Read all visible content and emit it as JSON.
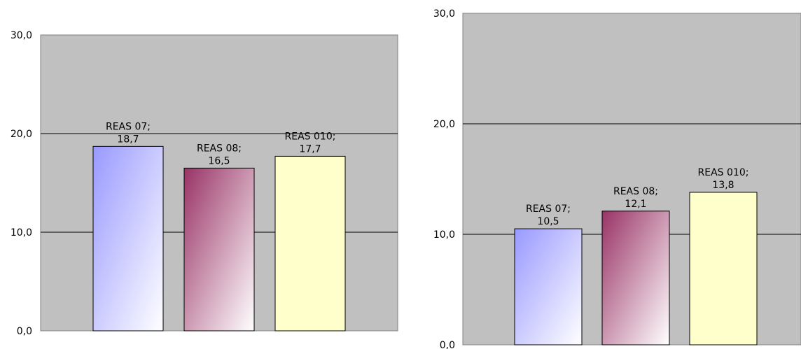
{
  "chart_data": [
    {
      "type": "bar",
      "title": "",
      "xlabel": "",
      "ylabel": "",
      "ylim": [
        0,
        30
      ],
      "yticks": [
        "0,0",
        "10,0",
        "20,0",
        "30,0"
      ],
      "grid": true,
      "legend": "none",
      "categories": [
        "REAS 07",
        "REAS 08",
        "REAS 010"
      ],
      "values": [
        18.7,
        16.5,
        17.7
      ],
      "data_labels": [
        [
          "REAS 07;",
          "18,7"
        ],
        [
          "REAS 08;",
          "16,5"
        ],
        [
          "REAS 010;",
          "17,7"
        ]
      ]
    },
    {
      "type": "bar",
      "title": "",
      "xlabel": "",
      "ylabel": "",
      "ylim": [
        0,
        30
      ],
      "yticks": [
        "0,0",
        "10,0",
        "20,0",
        "30,0"
      ],
      "grid": true,
      "legend": "none",
      "categories": [
        "REAS 07",
        "REAS 08",
        "REAS 010"
      ],
      "values": [
        10.5,
        12.1,
        13.8
      ],
      "data_labels": [
        [
          "REAS 07;",
          "10,5"
        ],
        [
          "REAS 08;",
          "12,1"
        ],
        [
          "REAS 010;",
          "13,8"
        ]
      ]
    }
  ],
  "colors": {
    "plot_background": "#c0c0c0",
    "bar_series": [
      "#9999ff",
      "#993366",
      "#ffffcc"
    ]
  }
}
